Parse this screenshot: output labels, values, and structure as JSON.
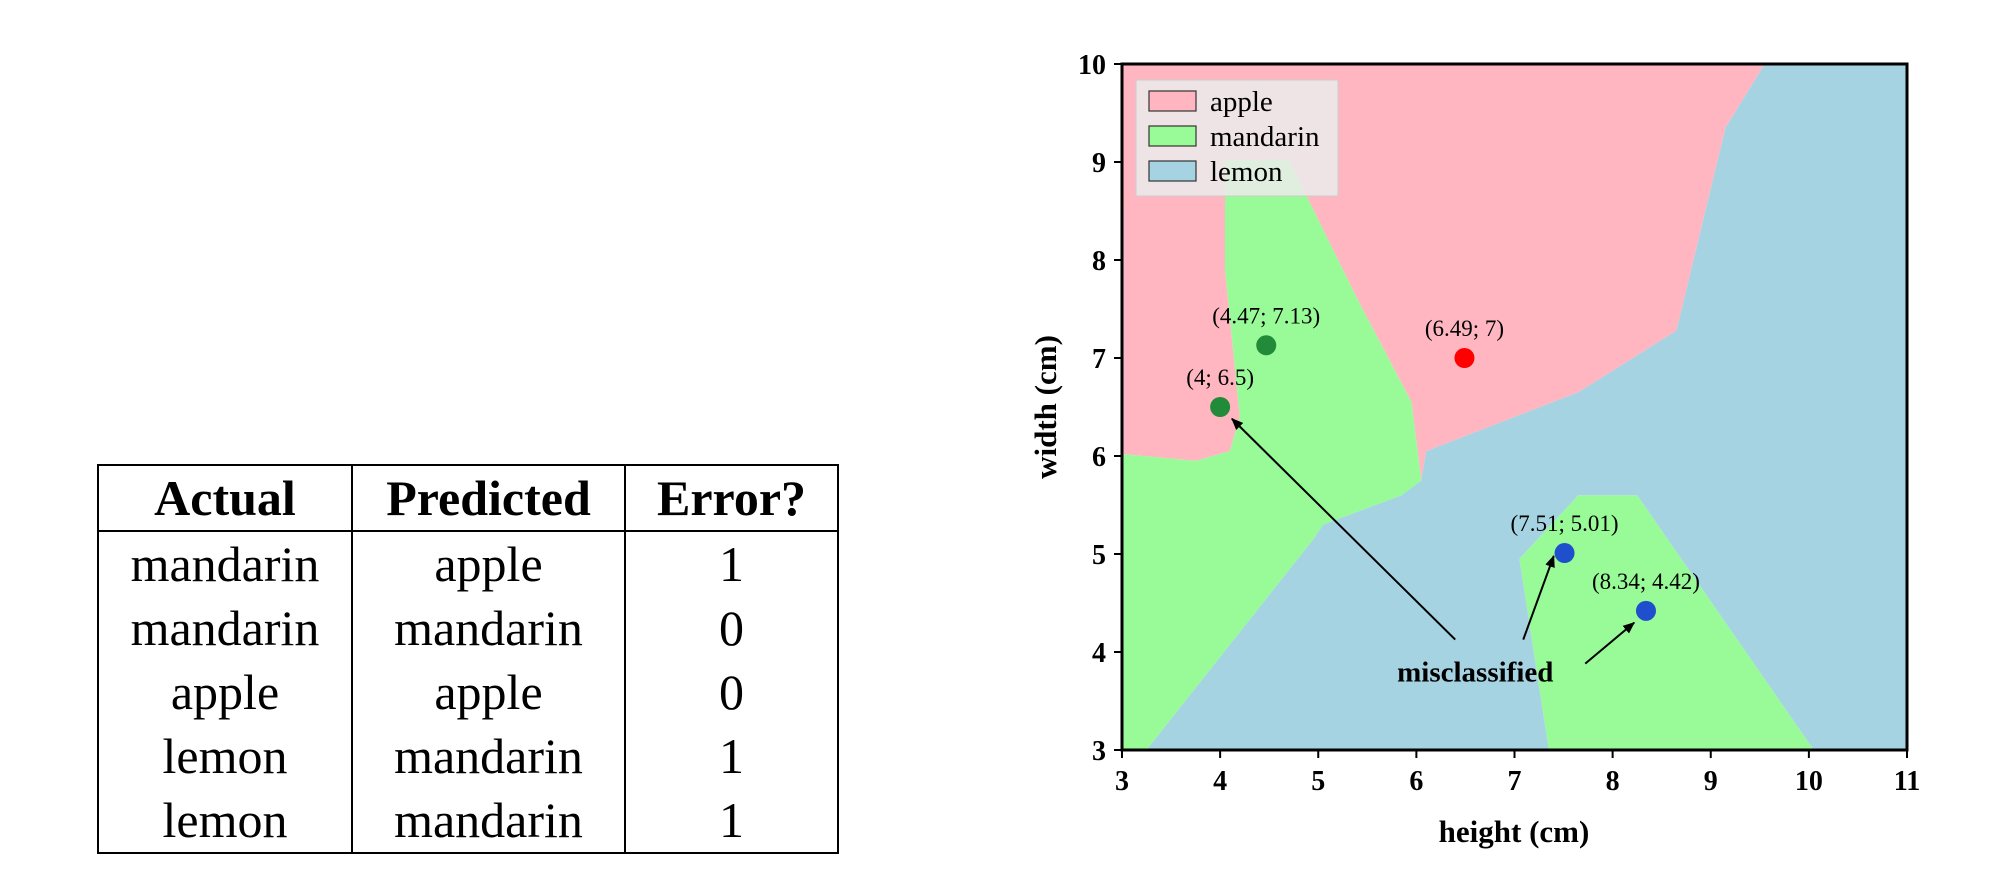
{
  "table": {
    "headers": [
      "Actual",
      "Predicted",
      "Error?"
    ],
    "rows": [
      [
        "mandarin",
        "apple",
        "1"
      ],
      [
        "mandarin",
        "mandarin",
        "0"
      ],
      [
        "apple",
        "apple",
        "0"
      ],
      [
        "lemon",
        "mandarin",
        "1"
      ],
      [
        "lemon",
        "mandarin",
        "1"
      ]
    ]
  },
  "chart_data": {
    "type": "scatter",
    "xlabel": "height (cm)",
    "ylabel": "width (cm)",
    "xlim": [
      3,
      11
    ],
    "ylim": [
      3,
      10
    ],
    "xticks": [
      "3",
      "4",
      "5",
      "6",
      "7",
      "8",
      "9",
      "10",
      "11"
    ],
    "yticks": [
      "3",
      "4",
      "5",
      "6",
      "7",
      "8",
      "9",
      "10"
    ],
    "legend": {
      "position": "top-left",
      "entries": [
        {
          "name": "apple",
          "color": "#ffb6c1"
        },
        {
          "name": "mandarin",
          "color": "#98fb98"
        },
        {
          "name": "lemon",
          "color": "#a6d3e2"
        }
      ]
    },
    "regions": [
      {
        "class": "apple",
        "color": "#ffb6c1",
        "polygon": [
          [
            3,
            10
          ],
          [
            9.55,
            10
          ],
          [
            9.15,
            9.35
          ],
          [
            8.65,
            7.28
          ],
          [
            7.65,
            6.65
          ],
          [
            6.1,
            6.05
          ],
          [
            6.05,
            5.75
          ],
          [
            5.95,
            6.55
          ],
          [
            5.4,
            7.6
          ],
          [
            4.7,
            9.02
          ],
          [
            4.05,
            9.02
          ],
          [
            4.05,
            7.9
          ],
          [
            4.2,
            6.4
          ],
          [
            4.1,
            6.05
          ],
          [
            3.75,
            5.95
          ],
          [
            3,
            6.02
          ]
        ]
      },
      {
        "class": "mandarin",
        "color": "#98fb98",
        "polygon": [
          [
            4.05,
            9.02
          ],
          [
            4.7,
            9.02
          ],
          [
            5.4,
            7.6
          ],
          [
            5.95,
            6.55
          ],
          [
            6.05,
            5.75
          ],
          [
            5.85,
            5.6
          ],
          [
            5.05,
            5.3
          ],
          [
            4.95,
            5.15
          ],
          [
            3.25,
            3.0
          ],
          [
            3,
            3.0
          ],
          [
            3,
            6.02
          ],
          [
            3.75,
            5.95
          ],
          [
            4.1,
            6.05
          ],
          [
            4.2,
            6.4
          ],
          [
            4.05,
            7.9
          ]
        ]
      },
      {
        "class": "mandarin",
        "color": "#98fb98",
        "polygon": [
          [
            7.05,
            4.95
          ],
          [
            7.65,
            5.6
          ],
          [
            8.25,
            5.6
          ],
          [
            10.05,
            3.0
          ],
          [
            7.35,
            3.0
          ]
        ]
      },
      {
        "class": "lemon",
        "color": "#a6d3e2",
        "polygon": [
          [
            9.55,
            10
          ],
          [
            11,
            10
          ],
          [
            11,
            3
          ],
          [
            10.05,
            3
          ],
          [
            8.25,
            5.6
          ],
          [
            7.65,
            5.6
          ],
          [
            7.05,
            4.95
          ],
          [
            7.35,
            3
          ],
          [
            3.25,
            3
          ],
          [
            4.95,
            5.15
          ],
          [
            5.05,
            5.3
          ],
          [
            5.85,
            5.6
          ],
          [
            6.05,
            5.75
          ],
          [
            6.1,
            6.05
          ],
          [
            7.65,
            6.65
          ],
          [
            8.65,
            7.28
          ],
          [
            9.15,
            9.35
          ]
        ]
      }
    ],
    "points": [
      {
        "x": 4.47,
        "y": 7.13,
        "label": "(4.47; 7.13)",
        "color": "#228b3a"
      },
      {
        "x": 4.0,
        "y": 6.5,
        "label": "(4; 6.5)",
        "color": "#228b3a"
      },
      {
        "x": 6.49,
        "y": 7.0,
        "label": "(6.49; 7)",
        "color": "#ff0000"
      },
      {
        "x": 7.51,
        "y": 5.01,
        "label": "(7.51; 5.01)",
        "color": "#1f4fcc"
      },
      {
        "x": 8.34,
        "y": 4.42,
        "label": "(8.34; 4.42)",
        "color": "#1f4fcc"
      }
    ],
    "annotation": {
      "text": "misclassified",
      "x": 6.6,
      "y": 3.8,
      "targets": [
        {
          "x": 4.12,
          "y": 6.38
        },
        {
          "x": 7.4,
          "y": 4.98
        },
        {
          "x": 8.22,
          "y": 4.3
        }
      ]
    }
  }
}
